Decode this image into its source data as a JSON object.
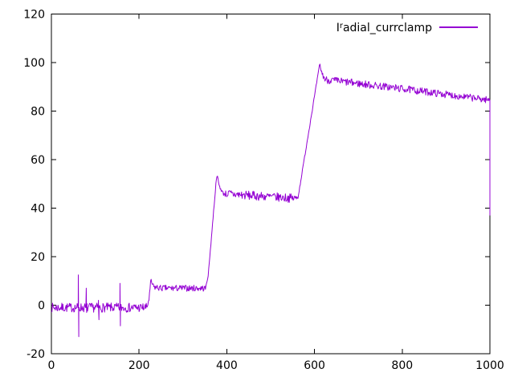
{
  "window": {
    "background_color": "#ffffff",
    "border_color": "#000000",
    "text_color": "#000000"
  },
  "legend": {
    "prefix": "I",
    "superscript": "r",
    "rest": "adial_currclamp",
    "full_raw_name": "I^radial_currclamp",
    "sample_color": "#9400d3"
  },
  "chart_data": {
    "type": "line",
    "title": "",
    "xlabel": "",
    "ylabel": "",
    "xlim": [
      0,
      1000
    ],
    "ylim": [
      -20,
      120
    ],
    "xticks": [
      0,
      200,
      400,
      600,
      800,
      1000
    ],
    "yticks": [
      -20,
      0,
      20,
      40,
      60,
      80,
      100,
      120
    ],
    "grid": false,
    "legend_position": "top-right",
    "tick_style": "inward-mirrored",
    "series": [
      {
        "name": "I^radial_currclamp",
        "label_display": "Iʳadial_currclamp",
        "color": "#9400d3",
        "description": "noisy stepped signal: baseline ~-1 until x=222, step to ~7 until x=352, ramp to peak 54 at x=377 settling to ~45 plateau until x=563, ramp to peak ~100 at x=612, then slow decline from 93 to ~84.5 at x=1000, final vertical drop to ~37",
        "envelope_points": [
          [
            0,
            -1
          ],
          [
            218,
            -1
          ],
          [
            223,
            3
          ],
          [
            227,
            10
          ],
          [
            233,
            7.5
          ],
          [
            250,
            7
          ],
          [
            352,
            7
          ],
          [
            358,
            13
          ],
          [
            377,
            54
          ],
          [
            383,
            49
          ],
          [
            392,
            46
          ],
          [
            430,
            45.5
          ],
          [
            558,
            44
          ],
          [
            563,
            45
          ],
          [
            612,
            99.5
          ],
          [
            616,
            96
          ],
          [
            624,
            93
          ],
          [
            810,
            89
          ],
          [
            1000,
            84.5
          ]
        ],
        "noise_amplitude_points": [
          [
            0,
            1.9
          ],
          [
            216,
            1.9
          ],
          [
            222,
            1.3
          ],
          [
            348,
            1.3
          ],
          [
            356,
            0.6
          ],
          [
            392,
            0.8
          ],
          [
            402,
            1.9
          ],
          [
            556,
            1.8
          ],
          [
            566,
            0.5
          ],
          [
            610,
            0.5
          ],
          [
            618,
            1.2
          ],
          [
            630,
            1.6
          ],
          [
            1000,
            1.4
          ]
        ],
        "spikes": [
          {
            "x": 62,
            "high": 12.5,
            "low": -13
          },
          {
            "x": 80,
            "high": 7,
            "low": -3
          },
          {
            "x": 108,
            "high": 2,
            "low": -6
          },
          {
            "x": 157,
            "high": 9,
            "low": -8.5
          }
        ],
        "end_drop": {
          "x": 1000,
          "to": 37
        },
        "noise_seed": 7,
        "sample_step": 1.25
      }
    ]
  }
}
